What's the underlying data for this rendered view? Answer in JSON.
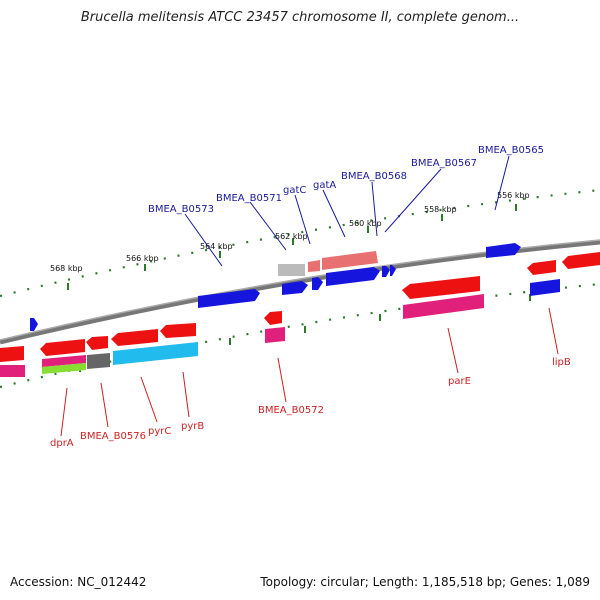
{
  "title": "Brucella melitensis ATCC 23457 chromosome II, complete genom...",
  "accession_text": "Accession: NC_012442",
  "topology_text": "Topology: circular; Length: 1,185,518 bp; Genes: 1,089",
  "ticks": [
    "568 kbp",
    "566 kbp",
    "564 kbp",
    "562 kbp",
    "560 kbp",
    "558 kbp",
    "556 kbp"
  ],
  "top_labels": [
    "BMEA_B0573",
    "BMEA_B0571",
    "gatC",
    "gatA",
    "BMEA_B0568",
    "BMEA_B0567",
    "BMEA_B0565"
  ],
  "bottom_labels": [
    "dprA",
    "BMEA_B0576",
    "pyrC",
    "pyrB",
    "BMEA_B0572",
    "parE",
    "lipB"
  ],
  "colors": {
    "top_label": "#1a1a99",
    "bottom_label": "#cc2222",
    "tick": "#2a7a2a",
    "backbone": "#777777",
    "forward_gene": "#1010dd",
    "reverse_gene": "#ee1111",
    "pink_gene": "#e0207a",
    "cyan_gene": "#22bbee",
    "gray_gene": "#666666",
    "salmon_gene": "#e87070",
    "green_gene": "#88dd33"
  }
}
